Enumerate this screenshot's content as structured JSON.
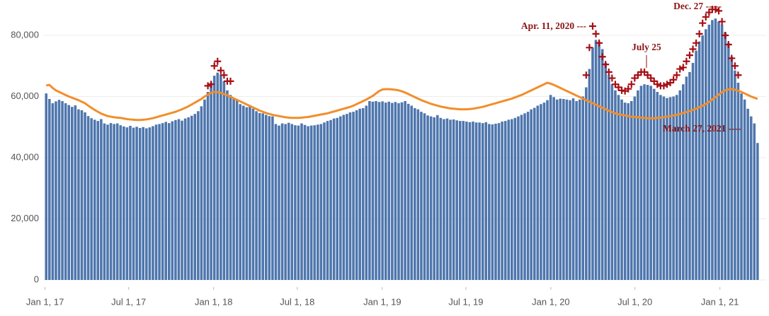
{
  "chart_data": {
    "type": "bar",
    "grid": true,
    "ylim": [
      0,
      90000
    ],
    "yticks": [
      0,
      {
        "value": 20000,
        "label": "20,000"
      },
      {
        "value": 40000,
        "label": "40,000"
      },
      {
        "value": 60000,
        "label": "60,000"
      },
      {
        "value": 80000,
        "label": "80,000"
      }
    ],
    "xlim": [
      "2016-12-28",
      "2021-04-05"
    ],
    "xticks": [
      {
        "value": "2017-01-01",
        "label": "Jan 1, 17"
      },
      {
        "value": "2017-07-01",
        "label": "Jul 1, 17"
      },
      {
        "value": "2018-01-01",
        "label": "Jan 1, 18"
      },
      {
        "value": "2018-07-01",
        "label": "Jul 1, 18"
      },
      {
        "value": "2019-01-01",
        "label": "Jan 1, 19"
      },
      {
        "value": "2019-07-01",
        "label": "Jul 1, 19"
      },
      {
        "value": "2020-01-01",
        "label": "Jan 1, 20"
      },
      {
        "value": "2020-07-01",
        "label": "Jul 1, 20"
      },
      {
        "value": "2021-01-01",
        "label": "Jan 1, 21"
      }
    ],
    "annotations": [
      "Apr. 11, 2020 ---",
      "July 25",
      "Dec. 27 -----",
      "March 27, 2021 ----"
    ],
    "x": [
      "2017-01-07",
      "2017-01-14",
      "2017-01-21",
      "2017-01-28",
      "2017-02-04",
      "2017-02-11",
      "2017-02-18",
      "2017-02-25",
      "2017-03-04",
      "2017-03-11",
      "2017-03-18",
      "2017-03-25",
      "2017-04-01",
      "2017-04-08",
      "2017-04-15",
      "2017-04-22",
      "2017-04-29",
      "2017-05-06",
      "2017-05-13",
      "2017-05-20",
      "2017-05-27",
      "2017-06-03",
      "2017-06-10",
      "2017-06-17",
      "2017-06-24",
      "2017-07-01",
      "2017-07-08",
      "2017-07-15",
      "2017-07-22",
      "2017-07-29",
      "2017-08-05",
      "2017-08-12",
      "2017-08-19",
      "2017-08-26",
      "2017-09-02",
      "2017-09-09",
      "2017-09-16",
      "2017-09-23",
      "2017-09-30",
      "2017-10-07",
      "2017-10-14",
      "2017-10-21",
      "2017-10-28",
      "2017-11-04",
      "2017-11-11",
      "2017-11-18",
      "2017-11-25",
      "2017-12-02",
      "2017-12-09",
      "2017-12-16",
      "2017-12-23",
      "2017-12-30",
      "2018-01-06",
      "2018-01-13",
      "2018-01-20",
      "2018-01-27",
      "2018-02-03",
      "2018-02-10",
      "2018-02-17",
      "2018-02-24",
      "2018-03-03",
      "2018-03-10",
      "2018-03-17",
      "2018-03-24",
      "2018-03-31",
      "2018-04-07",
      "2018-04-14",
      "2018-04-21",
      "2018-04-28",
      "2018-05-05",
      "2018-05-12",
      "2018-05-19",
      "2018-05-26",
      "2018-06-02",
      "2018-06-09",
      "2018-06-16",
      "2018-06-23",
      "2018-06-30",
      "2018-07-07",
      "2018-07-14",
      "2018-07-21",
      "2018-07-28",
      "2018-08-04",
      "2018-08-11",
      "2018-08-18",
      "2018-08-25",
      "2018-09-01",
      "2018-09-08",
      "2018-09-15",
      "2018-09-22",
      "2018-09-29",
      "2018-10-06",
      "2018-10-13",
      "2018-10-20",
      "2018-10-27",
      "2018-11-03",
      "2018-11-10",
      "2018-11-17",
      "2018-11-24",
      "2018-12-01",
      "2018-12-08",
      "2018-12-15",
      "2018-12-22",
      "2018-12-29",
      "2019-01-05",
      "2019-01-12",
      "2019-01-19",
      "2019-01-26",
      "2019-02-02",
      "2019-02-09",
      "2019-02-16",
      "2019-02-23",
      "2019-03-02",
      "2019-03-09",
      "2019-03-16",
      "2019-03-23",
      "2019-03-30",
      "2019-04-06",
      "2019-04-13",
      "2019-04-20",
      "2019-04-27",
      "2019-05-04",
      "2019-05-11",
      "2019-05-18",
      "2019-05-25",
      "2019-06-01",
      "2019-06-08",
      "2019-06-15",
      "2019-06-22",
      "2019-06-29",
      "2019-07-06",
      "2019-07-13",
      "2019-07-20",
      "2019-07-27",
      "2019-08-03",
      "2019-08-10",
      "2019-08-17",
      "2019-08-24",
      "2019-08-31",
      "2019-09-07",
      "2019-09-14",
      "2019-09-21",
      "2019-09-28",
      "2019-10-05",
      "2019-10-12",
      "2019-10-19",
      "2019-10-26",
      "2019-11-02",
      "2019-11-09",
      "2019-11-16",
      "2019-11-23",
      "2019-11-30",
      "2019-12-07",
      "2019-12-14",
      "2019-12-21",
      "2019-12-28",
      "2020-01-04",
      "2020-01-11",
      "2020-01-18",
      "2020-01-25",
      "2020-02-01",
      "2020-02-08",
      "2020-02-15",
      "2020-02-22",
      "2020-02-29",
      "2020-03-07",
      "2020-03-14",
      "2020-03-21",
      "2020-03-28",
      "2020-04-04",
      "2020-04-11",
      "2020-04-18",
      "2020-04-25",
      "2020-05-02",
      "2020-05-09",
      "2020-05-16",
      "2020-05-23",
      "2020-05-30",
      "2020-06-06",
      "2020-06-13",
      "2020-06-20",
      "2020-06-27",
      "2020-07-04",
      "2020-07-11",
      "2020-07-18",
      "2020-07-25",
      "2020-08-01",
      "2020-08-08",
      "2020-08-15",
      "2020-08-22",
      "2020-08-29",
      "2020-09-05",
      "2020-09-12",
      "2020-09-19",
      "2020-09-26",
      "2020-10-03",
      "2020-10-10",
      "2020-10-17",
      "2020-10-24",
      "2020-10-31",
      "2020-11-07",
      "2020-11-14",
      "2020-11-21",
      "2020-11-28",
      "2020-12-05",
      "2020-12-12",
      "2020-12-19",
      "2020-12-26",
      "2021-01-02",
      "2021-01-09",
      "2021-01-16",
      "2021-01-23",
      "2021-01-30",
      "2021-02-06",
      "2021-02-13",
      "2021-02-20",
      "2021-02-27",
      "2021-03-06",
      "2021-03-13",
      "2021-03-20",
      "2021-03-27"
    ],
    "series": [
      {
        "type": "bar",
        "color": "#4e76ad",
        "values": [
          61000,
          59200,
          57800,
          58400,
          58900,
          58500,
          57800,
          57200,
          56600,
          57100,
          55800,
          55500,
          54800,
          53600,
          52900,
          52400,
          52000,
          52600,
          51200,
          50800,
          51300,
          51000,
          51200,
          50600,
          50200,
          49900,
          50400,
          49800,
          50100,
          49700,
          50000,
          49600,
          49900,
          50300,
          50800,
          51000,
          51300,
          51700,
          51300,
          51900,
          52300,
          52600,
          52100,
          52800,
          53200,
          53700,
          54300,
          55200,
          56800,
          59000,
          61500,
          64500,
          66800,
          67800,
          67200,
          65000,
          62000,
          60500,
          59500,
          58800,
          57500,
          57000,
          56500,
          56800,
          56000,
          55200,
          54600,
          54500,
          54000,
          53600,
          53500,
          51000,
          50500,
          51200,
          51000,
          51400,
          51000,
          50600,
          50500,
          51200,
          50700,
          50300,
          50500,
          50600,
          50800,
          51000,
          51500,
          52000,
          52300,
          52800,
          53000,
          53500,
          54000,
          54300,
          54800,
          55000,
          55500,
          56000,
          56200,
          57000,
          58500,
          58300,
          58500,
          58200,
          58400,
          58000,
          58300,
          57900,
          58200,
          57800,
          58100,
          58500,
          57600,
          57000,
          56200,
          55800,
          55000,
          54500,
          53800,
          53500,
          53200,
          53900,
          53000,
          52600,
          52800,
          52400,
          52500,
          52200,
          52000,
          52000,
          51800,
          51600,
          51800,
          51500,
          51500,
          51300,
          51600,
          51000,
          50900,
          51100,
          51300,
          51800,
          52000,
          52400,
          52600,
          53000,
          53500,
          54000,
          54500,
          55000,
          55800,
          56300,
          57000,
          57500,
          58000,
          58800,
          60500,
          59800,
          59000,
          59300,
          59200,
          59000,
          58800,
          59400,
          58500,
          59000,
          60000,
          63000,
          69000,
          76000,
          78500,
          78000,
          75500,
          71000,
          67000,
          64000,
          62000,
          60500,
          59000,
          58000,
          57800,
          58500,
          60000,
          62000,
          63500,
          64000,
          63800,
          63500,
          62500,
          61500,
          60500,
          60000,
          59500,
          59800,
          60000,
          60500,
          62000,
          64000,
          66500,
          68000,
          71000,
          75000,
          78000,
          80000,
          82000,
          83500,
          85000,
          85500,
          84500,
          83500,
          81000,
          77500,
          73000,
          68500,
          64500,
          61000,
          59000,
          56000,
          53500,
          51200,
          44800
        ]
      },
      {
        "type": "line",
        "color": "#f28e2b",
        "values": [
          63600,
          63800,
          62800,
          62000,
          61500,
          61000,
          60500,
          60000,
          59600,
          59200,
          58800,
          58300,
          57800,
          57000,
          56300,
          55600,
          55000,
          54400,
          54000,
          53600,
          53400,
          53200,
          53100,
          53000,
          52800,
          52600,
          52500,
          52400,
          52300,
          52300,
          52400,
          52500,
          52700,
          52900,
          53200,
          53500,
          53800,
          54100,
          54400,
          54700,
          55000,
          55400,
          55800,
          56300,
          56800,
          57400,
          58000,
          58600,
          59200,
          60000,
          60600,
          61200,
          61500,
          61400,
          61200,
          60800,
          60400,
          59900,
          59400,
          58900,
          58400,
          57900,
          57400,
          56900,
          56400,
          55900,
          55400,
          55000,
          54600,
          54300,
          54000,
          53800,
          53600,
          53400,
          53200,
          53100,
          53000,
          53000,
          53000,
          53100,
          53200,
          53300,
          53500,
          53700,
          53900,
          54100,
          54300,
          54500,
          54800,
          55100,
          55400,
          55700,
          56000,
          56300,
          56600,
          57000,
          57500,
          58000,
          58500,
          59000,
          59600,
          60200,
          61000,
          61800,
          62300,
          62400,
          62400,
          62300,
          62200,
          62000,
          61700,
          61300,
          60800,
          60300,
          59800,
          59300,
          58800,
          58400,
          58000,
          57600,
          57300,
          57000,
          56700,
          56500,
          56300,
          56100,
          56000,
          55900,
          55800,
          55800,
          55800,
          55900,
          56000,
          56200,
          56400,
          56600,
          56900,
          57200,
          57500,
          57800,
          58100,
          58400,
          58700,
          59000,
          59300,
          59700,
          60100,
          60500,
          61000,
          61500,
          62000,
          62500,
          63000,
          63500,
          64000,
          64500,
          64200,
          63800,
          63300,
          62800,
          62300,
          61800,
          61300,
          60800,
          60300,
          59800,
          59300,
          58800,
          58300,
          57800,
          57300,
          56800,
          56300,
          55800,
          55300,
          54900,
          54500,
          54200,
          54000,
          53800,
          53600,
          53400,
          53300,
          53200,
          53100,
          53000,
          52900,
          52900,
          52900,
          53000,
          53100,
          53200,
          53400,
          53600,
          53800,
          54000,
          54300,
          54600,
          54900,
          55200,
          55600,
          56000,
          56500,
          57000,
          57600,
          58200,
          59000,
          59800,
          60600,
          61400,
          62000,
          62300,
          62400,
          62200,
          61900,
          61500,
          61000,
          60500,
          60000,
          59600,
          59200
        ]
      },
      {
        "type": "scatter",
        "color": "#a50f15",
        "values": [
          null,
          null,
          null,
          null,
          null,
          null,
          null,
          null,
          null,
          null,
          null,
          null,
          null,
          null,
          null,
          null,
          null,
          null,
          null,
          null,
          null,
          null,
          null,
          null,
          null,
          null,
          null,
          null,
          null,
          null,
          null,
          null,
          null,
          null,
          null,
          null,
          null,
          null,
          null,
          null,
          null,
          null,
          null,
          null,
          null,
          null,
          null,
          null,
          null,
          null,
          63500,
          64000,
          70000,
          71500,
          68500,
          67000,
          65000,
          65000,
          null,
          null,
          null,
          null,
          null,
          null,
          null,
          null,
          null,
          null,
          null,
          null,
          null,
          null,
          null,
          null,
          null,
          null,
          null,
          null,
          null,
          null,
          null,
          null,
          null,
          null,
          null,
          null,
          null,
          null,
          null,
          null,
          null,
          null,
          null,
          null,
          null,
          null,
          null,
          null,
          null,
          null,
          null,
          null,
          null,
          null,
          null,
          null,
          null,
          null,
          null,
          null,
          null,
          null,
          null,
          null,
          null,
          null,
          null,
          null,
          null,
          null,
          null,
          null,
          null,
          null,
          null,
          null,
          null,
          null,
          null,
          null,
          null,
          null,
          null,
          null,
          null,
          null,
          null,
          null,
          null,
          null,
          null,
          null,
          null,
          null,
          null,
          null,
          null,
          null,
          null,
          null,
          null,
          null,
          null,
          null,
          null,
          null,
          null,
          null,
          null,
          null,
          null,
          null,
          null,
          null,
          null,
          null,
          null,
          67000,
          76000,
          83000,
          80500,
          77500,
          73000,
          70500,
          68000,
          66000,
          64000,
          63000,
          62000,
          61800,
          62500,
          64000,
          66000,
          67000,
          68000,
          68000,
          67000,
          66000,
          65000,
          64000,
          63500,
          63500,
          64000,
          64500,
          65500,
          67000,
          69000,
          69500,
          71500,
          73500,
          75500,
          77500,
          80500,
          84000,
          86000,
          87500,
          88500,
          88500,
          88000,
          84500,
          80000,
          77000,
          72500,
          70000,
          67000,
          null,
          null,
          null,
          null,
          null,
          null
        ]
      }
    ]
  }
}
